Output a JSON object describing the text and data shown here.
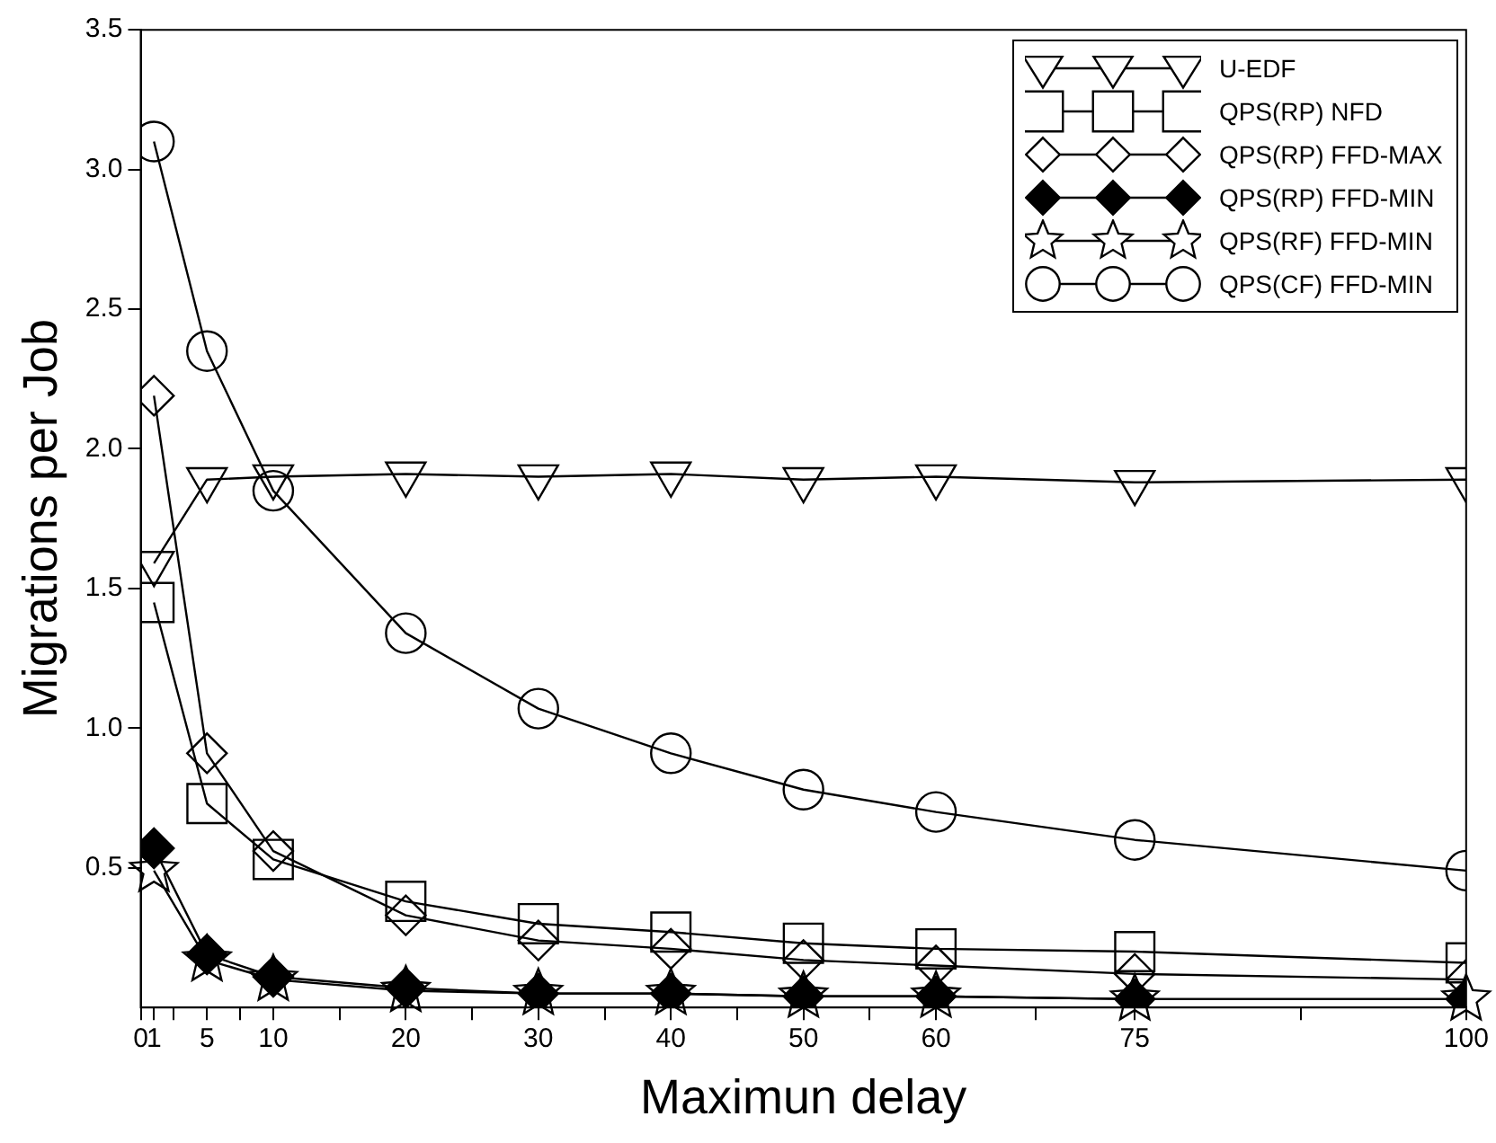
{
  "chart_data": {
    "type": "line",
    "xlabel": "Maximun delay",
    "ylabel": "Migrations per Job",
    "x": [
      1,
      5,
      10,
      20,
      30,
      40,
      50,
      60,
      75,
      100
    ],
    "xlim": [
      0,
      100
    ],
    "ylim": [
      0,
      3.5
    ],
    "xticks": [
      0,
      1,
      {
        "value": 2.5,
        "label": null
      },
      5,
      {
        "value": 7.5,
        "label": null
      },
      10,
      {
        "value": 15,
        "label": null
      },
      20,
      {
        "value": 25,
        "label": null
      },
      30,
      {
        "value": 35,
        "label": null
      },
      40,
      {
        "value": 45,
        "label": null
      },
      50,
      {
        "value": 55,
        "label": null
      },
      60,
      {
        "value": 67.5,
        "label": null
      },
      75,
      {
        "value": 87.5,
        "label": null
      },
      100
    ],
    "yticks": [
      0.5,
      {
        "value": 1,
        "label": "1.0"
      },
      1.5,
      {
        "value": 2,
        "label": "2.0"
      },
      2.5,
      {
        "value": 3,
        "label": "3.0"
      },
      3.5
    ],
    "grid": false,
    "legend": "top right",
    "line_style": "solid",
    "series": [
      {
        "name": "U-EDF",
        "color": "#000000",
        "marker": "triangle",
        "values": [
          1.59,
          1.89,
          1.9,
          1.91,
          1.9,
          1.91,
          1.89,
          1.9,
          1.88,
          1.89
        ]
      },
      {
        "name": "QPS(RP) NFD",
        "color": "#000000",
        "marker": "square",
        "values": [
          1.45,
          0.73,
          0.53,
          0.38,
          0.3,
          0.27,
          0.23,
          0.21,
          0.2,
          0.16
        ]
      },
      {
        "name": "QPS(RP) FFD-MAX",
        "color": "#000000",
        "marker": "diamond",
        "values": [
          2.19,
          0.91,
          0.56,
          0.33,
          0.24,
          0.21,
          0.17,
          0.15,
          0.12,
          0.1
        ]
      },
      {
        "name": "QPS(RP) FFD-MIN",
        "color": "#000000",
        "marker": "diamond",
        "colors": [
          "#000000",
          "#000000",
          "#000000",
          "#000000",
          "#000000",
          "#000000",
          "#000000",
          "#000000",
          "#000000",
          "#000000"
        ],
        "values": [
          0.57,
          0.19,
          0.11,
          0.07,
          0.05,
          0.05,
          0.04,
          0.04,
          0.03,
          0.03
        ]
      },
      {
        "name": "QPS(RF) FFD-MIN",
        "color": "#000000",
        "marker": "star",
        "values": [
          0.49,
          0.17,
          0.1,
          0.06,
          0.05,
          0.05,
          0.04,
          0.04,
          0.03,
          0.03
        ]
      },
      {
        "name": "QPS(CF) FFD-MIN",
        "color": "#000000",
        "marker": "circle",
        "values": [
          3.1,
          2.35,
          1.85,
          1.34,
          1.07,
          0.91,
          0.78,
          0.7,
          0.6,
          0.49
        ]
      }
    ]
  }
}
